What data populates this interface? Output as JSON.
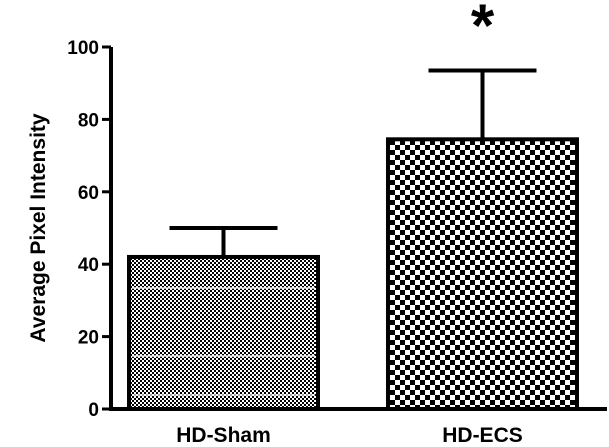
{
  "chart_data": {
    "type": "bar",
    "categories": [
      "HD-Sham",
      "HD-ECS"
    ],
    "values": [
      42,
      74.5
    ],
    "errors": [
      8,
      19
    ],
    "significance": [
      "",
      "*"
    ],
    "title": "",
    "xlabel": "",
    "ylabel": "Average Pixel Intensity",
    "ylim": [
      0,
      100
    ],
    "yticks": [
      0,
      20,
      40,
      60,
      80,
      100
    ],
    "grid": false,
    "legend": "none",
    "colors": {
      "bar_fill": "#000000",
      "pattern_light": "#ffffff",
      "axis": "#000000"
    }
  }
}
